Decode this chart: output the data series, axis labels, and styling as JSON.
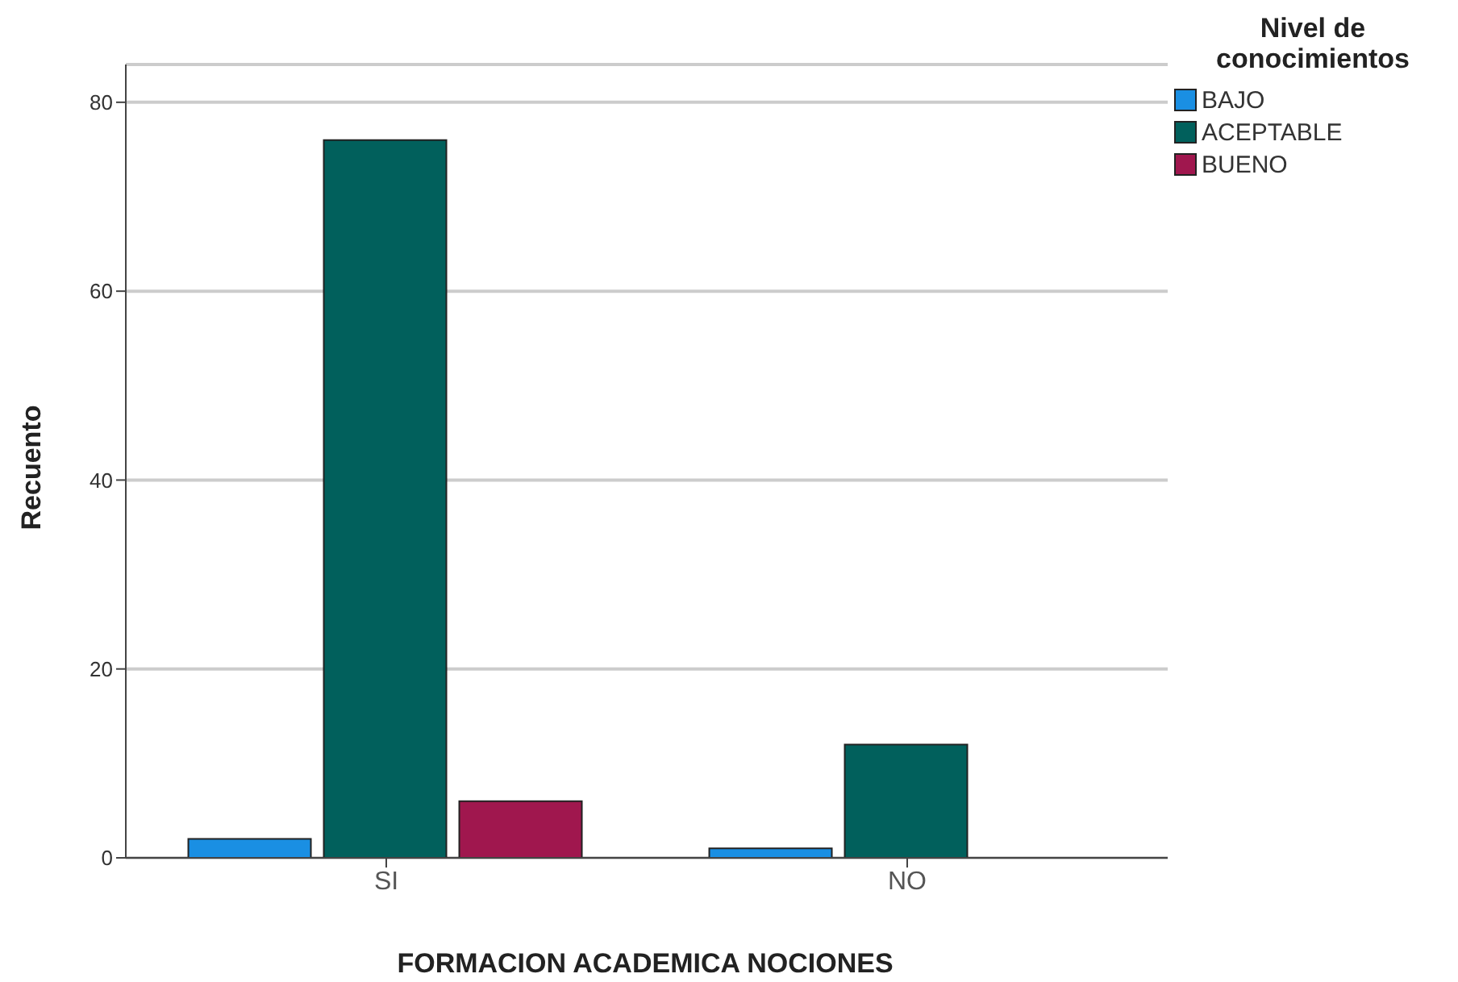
{
  "chart_data": {
    "type": "bar",
    "xlabel": "FORMACION ACADEMICA NOCIONES",
    "ylabel": "Recuento",
    "legend_title": "Nivel de conocimientos",
    "categories": [
      "SI",
      "NO"
    ],
    "series": [
      {
        "name": "BAJO",
        "color": "#1a8fe3",
        "values": [
          2,
          1
        ]
      },
      {
        "name": "ACEPTABLE",
        "color": "#01605c",
        "values": [
          76,
          12
        ]
      },
      {
        "name": "BUENO",
        "color": "#a0174e",
        "values": [
          6,
          null
        ]
      }
    ],
    "ylim": [
      0,
      84
    ],
    "yticks": [
      0,
      20,
      40,
      60,
      80
    ],
    "grid": "y",
    "legend": "top right"
  }
}
